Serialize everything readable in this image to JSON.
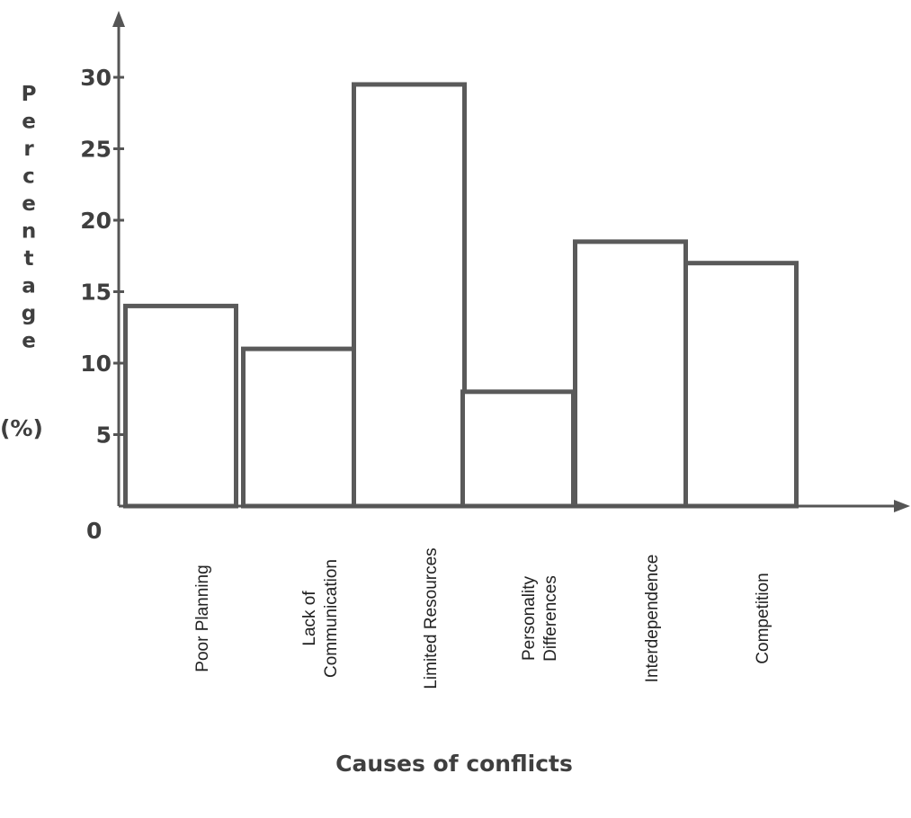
{
  "chart_data": {
    "type": "bar",
    "title": "",
    "xlabel": "Causes of conflicts",
    "ylabel": "Percentage",
    "ylabel_unit": "(%)",
    "zero_label": "0",
    "ylim": [
      0,
      30
    ],
    "yticks": [
      5,
      10,
      15,
      20,
      25,
      30
    ],
    "ytick_labels": [
      "5",
      "10",
      "15",
      "20",
      "25",
      "30"
    ],
    "grid": false,
    "categories": [
      [
        "Poor Planning"
      ],
      [
        "Lack of",
        "Communication"
      ],
      [
        "Limited Resources"
      ],
      [
        "Personality",
        "Differences"
      ],
      [
        "Interdependence"
      ],
      [
        "Competition"
      ]
    ],
    "values": [
      14,
      11,
      29.5,
      8,
      18.5,
      17
    ],
    "colors": {
      "bar_fill": "#ffffff",
      "bar_stroke": "#5a5a5a",
      "axis": "#555555",
      "text": "#3f3f3f"
    }
  }
}
